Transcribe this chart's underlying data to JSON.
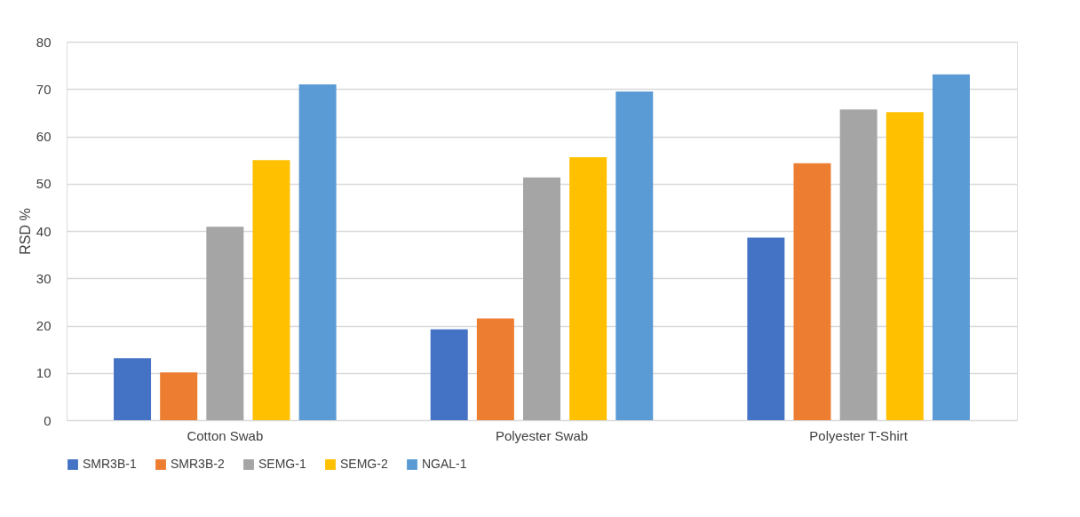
{
  "chart_data": {
    "type": "bar",
    "ylabel": "RSD %",
    "categories": [
      "Cotton Swab",
      "Polyester Swab",
      "Polyester T-Shirt"
    ],
    "series": [
      {
        "name": "SMR3B-1",
        "color": "#4472c4",
        "values": [
          13.1,
          19.2,
          38.6
        ]
      },
      {
        "name": "SMR3B-2",
        "color": "#ed7d31",
        "values": [
          10.1,
          21.5,
          54.3
        ]
      },
      {
        "name": "SEMG-1",
        "color": "#a5a5a5",
        "values": [
          40.9,
          51.3,
          65.7
        ]
      },
      {
        "name": "SEMG-2",
        "color": "#ffc000",
        "values": [
          55.0,
          55.6,
          65.1
        ]
      },
      {
        "name": "NGAL-1",
        "color": "#5b9bd5",
        "values": [
          71.0,
          69.5,
          73.1
        ]
      }
    ],
    "ylim": [
      0,
      80
    ],
    "yticks": [
      0,
      10,
      20,
      30,
      40,
      50,
      60,
      70,
      80
    ],
    "grid": "y",
    "legend": "bottom"
  }
}
